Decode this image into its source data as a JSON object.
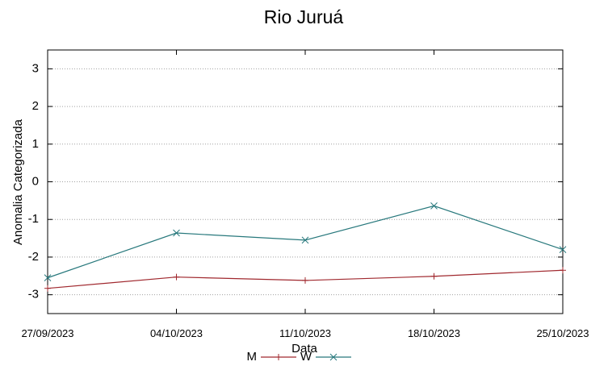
{
  "chart_data": {
    "type": "line",
    "title": "Rio Juruá",
    "xlabel": "Data",
    "ylabel": "Anomalia Categorizada",
    "categories": [
      "27/09/2023",
      "04/10/2023",
      "11/10/2023",
      "18/10/2023",
      "25/10/2023"
    ],
    "ylim": [
      -3.5,
      3.5
    ],
    "yticks": [
      "3",
      "2",
      "1",
      "0",
      "-1",
      "-2",
      "-3"
    ],
    "grid": true,
    "legend_position": "bottom",
    "series": [
      {
        "name": "M",
        "color": "#a0282e",
        "marker": "plus",
        "values": [
          -2.83,
          -2.53,
          -2.62,
          -2.51,
          -2.35
        ]
      },
      {
        "name": "W",
        "color": "#27787c",
        "marker": "x",
        "values": [
          -2.55,
          -1.36,
          -1.55,
          -0.64,
          -1.8
        ]
      }
    ]
  }
}
